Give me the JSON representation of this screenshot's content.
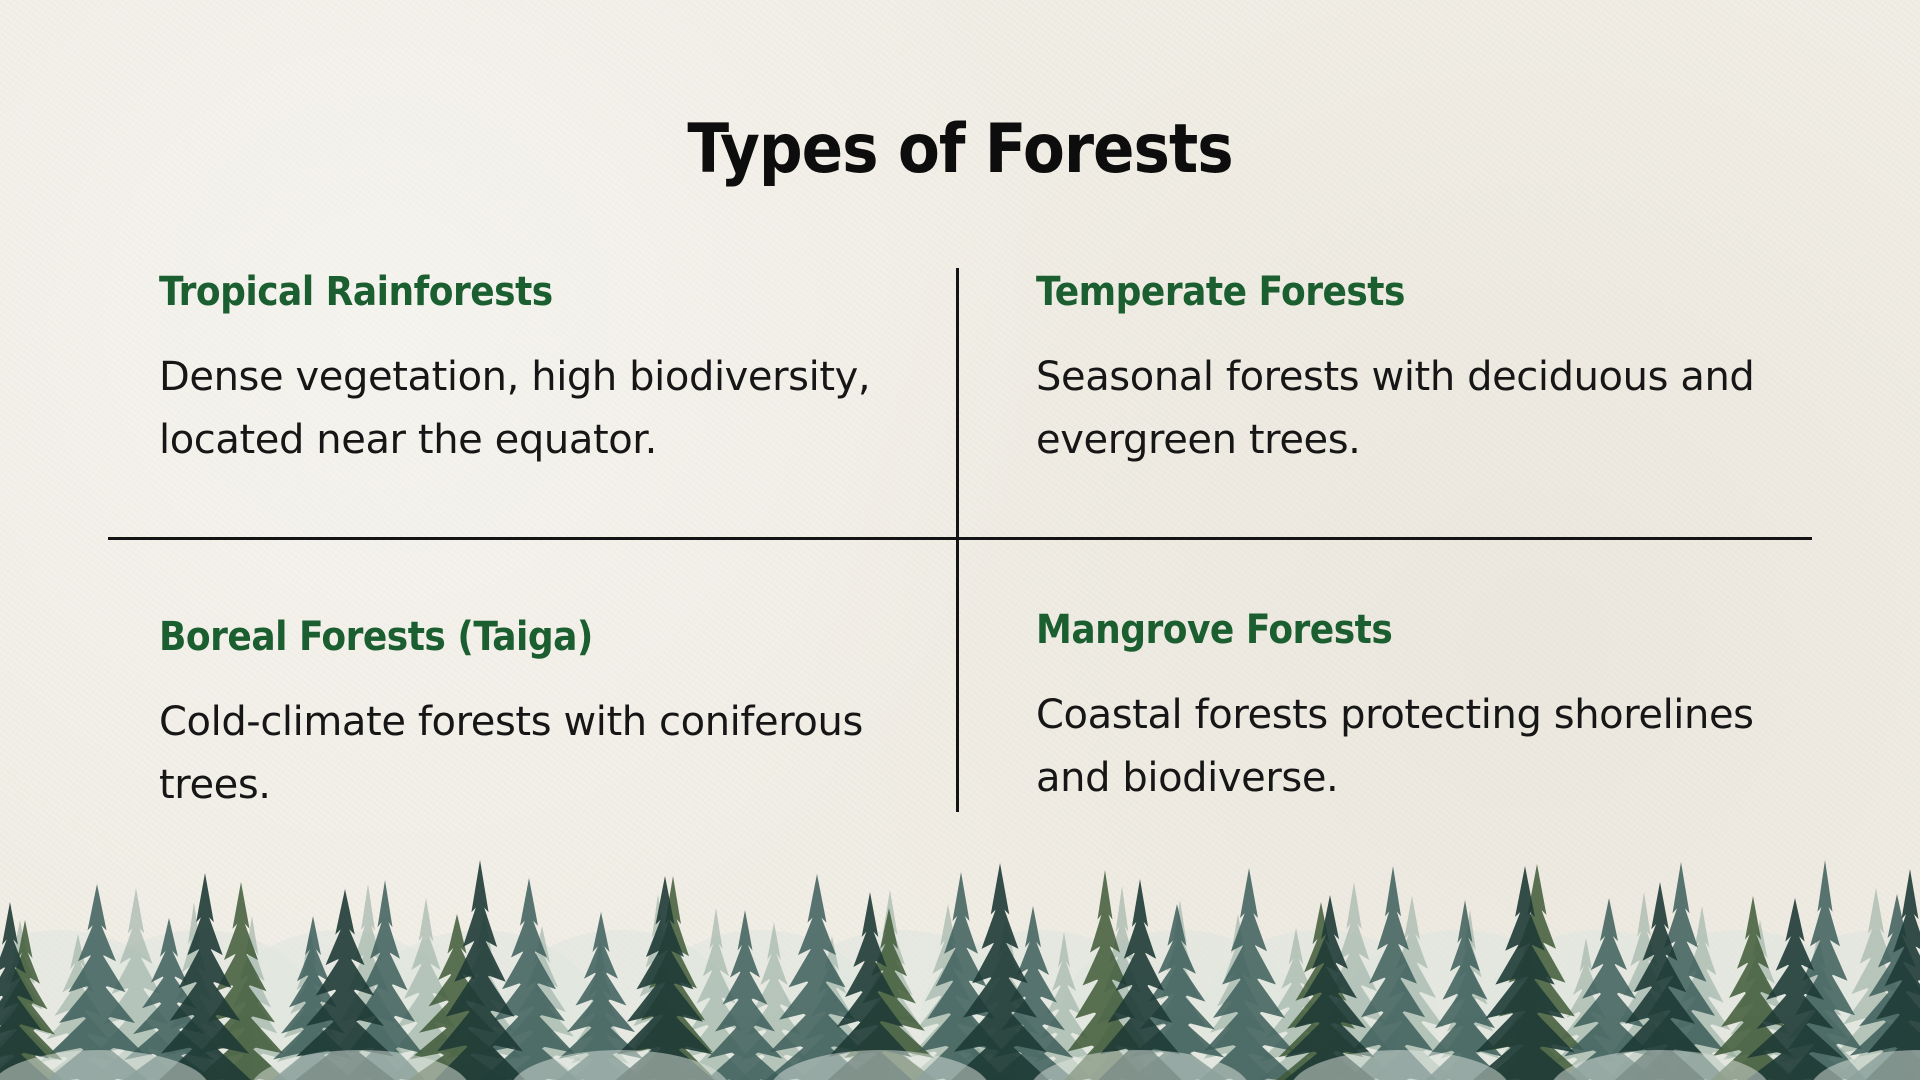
{
  "title": "Types of Forests",
  "cards": [
    {
      "heading": "Tropical Rainforests",
      "body": "Dense vegetation, high biodiversity, located near the equator."
    },
    {
      "heading": "Temperate Forests",
      "body": "Seasonal forests with deciduous and evergreen trees."
    },
    {
      "heading": "Boreal Forests (Taiga)",
      "body": "Cold-climate forests with coniferous trees."
    },
    {
      "heading": "Mangrove Forests",
      "body": "Coastal forests protecting shorelines and biodiverse."
    }
  ],
  "colors": {
    "background": "#f1eee6",
    "title": "#0d0d0d",
    "heading_green": "#1b5e30",
    "body_text": "#161616",
    "divider": "#141414",
    "tree_dark": "#1f3b36",
    "tree_teal": "#3d5e5a",
    "tree_green": "#3f5a37",
    "tree_light": "#8fa89a",
    "mist": "#dfe6df"
  },
  "decor": {
    "illustration": "watercolor-pine-forest-border"
  }
}
